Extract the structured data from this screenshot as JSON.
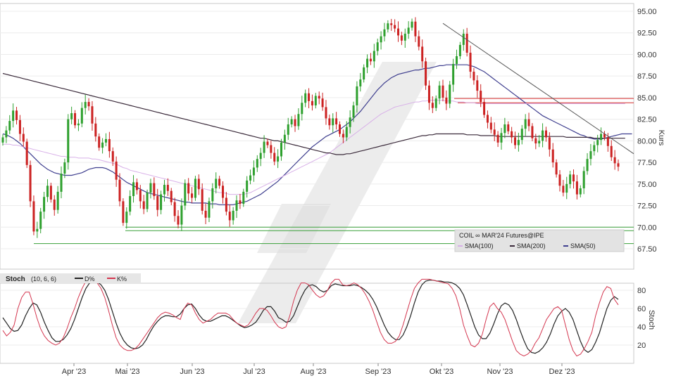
{
  "chart_data": [
    {
      "type": "candlestick",
      "instrument": "COIL ∞ MAR'24 Futures@IPE",
      "ylabel": "Kurs",
      "ylim": [
        66.0,
        96.5
      ],
      "y_ticks": [
        "95.00",
        "92.50",
        "90.00",
        "87.50",
        "85.00",
        "82.50",
        "80.00",
        "77.50",
        "75.00",
        "72.50",
        "70.00",
        "67.50"
      ],
      "x_ticks": [
        "Apr '23",
        "Mai '23",
        "Jun '23",
        "Jul '23",
        "Aug '23",
        "Sep '23",
        "Okt '23",
        "Nov '23",
        "Dez '23"
      ],
      "legend": [
        {
          "label": "SMA(100)",
          "color": "#d8b0e8"
        },
        {
          "label": "SMA(200)",
          "color": "#3a2a3a"
        },
        {
          "label": "SMA(50)",
          "color": "#3f3f8f"
        }
      ],
      "colors": {
        "up": "#2ea02e",
        "down": "#cc2222",
        "support": "#3aa03a",
        "resistance": "#d42a2a",
        "trend": "#555555"
      },
      "support_levels": [
        70.0,
        69.6,
        68.1
      ],
      "resistance_levels": [
        84.9,
        84.4
      ],
      "close": [
        80.4,
        81.2,
        82.3,
        83.5,
        82.4,
        80.8,
        79.9,
        77.2,
        73.0,
        69.5,
        69.8,
        71.8,
        73.5,
        74.8,
        73.2,
        72.0,
        74.1,
        76.2,
        77.5,
        82.5,
        83.2,
        81.8,
        82.0,
        83.8,
        84.5,
        84.0,
        82.0,
        80.5,
        79.2,
        79.8,
        80.2,
        78.8,
        77.6,
        75.5,
        73.0,
        70.5,
        71.8,
        73.6,
        75.2,
        74.3,
        73.0,
        72.1,
        74.0,
        75.1,
        73.6,
        72.0,
        73.8,
        74.9,
        74.2,
        72.9,
        71.3,
        70.3,
        72.5,
        75.1,
        73.9,
        73.4,
        75.6,
        74.4,
        71.9,
        71.1,
        73.0,
        74.5,
        75.6,
        74.8,
        73.4,
        71.8,
        70.8,
        71.9,
        73.1,
        72.7,
        74.1,
        75.4,
        76.0,
        76.9,
        77.9,
        78.6,
        79.9,
        79.5,
        78.6,
        77.6,
        78.2,
        79.8,
        80.7,
        81.9,
        82.5,
        81.7,
        83.1,
        84.4,
        85.5,
        84.6,
        84.1,
        85.2,
        84.9,
        83.9,
        82.6,
        81.8,
        82.6,
        81.9,
        80.8,
        80.4,
        81.6,
        82.7,
        84.1,
        86.3,
        87.1,
        88.5,
        89.5,
        89.2,
        90.4,
        91.4,
        92.1,
        92.9,
        93.6,
        93.4,
        93.0,
        92.2,
        91.6,
        92.4,
        93.1,
        93.8,
        92.1,
        90.9,
        89.2,
        86.4,
        84.4,
        83.8,
        84.9,
        86.4,
        85.0,
        84.3,
        86.5,
        88.9,
        89.8,
        91.1,
        92.4,
        90.2,
        88.0,
        87.0,
        85.8,
        84.5,
        83.0,
        82.1,
        81.3,
        80.7,
        79.8,
        80.9,
        81.9,
        81.1,
        80.4,
        79.5,
        80.1,
        81.4,
        82.5,
        81.7,
        80.3,
        79.7,
        80.0,
        81.2,
        80.4,
        79.0,
        77.5,
        76.1,
        74.8,
        74.0,
        75.0,
        76.1,
        75.3,
        73.8,
        74.5,
        76.5,
        77.9,
        78.8,
        79.5,
        80.1,
        80.8,
        80.4,
        79.4,
        78.1,
        77.4,
        77.0
      ],
      "series": [
        {
          "name": "SMA(50)",
          "values": [
            80.8,
            80.7,
            80.5,
            80.3,
            80.0,
            79.7,
            79.3,
            78.9,
            78.5,
            78.1,
            77.7,
            77.3,
            77.0,
            76.7,
            76.5,
            76.3,
            76.2,
            76.1,
            76.0,
            76.0,
            76.0,
            76.1,
            76.2,
            76.3,
            76.5,
            76.7,
            76.8,
            76.9,
            76.9,
            76.9,
            76.8,
            76.6,
            76.4,
            76.1,
            75.8,
            75.5,
            75.2,
            75.0,
            74.8,
            74.6,
            74.4,
            74.2,
            74.0,
            73.9,
            73.8,
            73.7,
            73.6,
            73.5,
            73.4,
            73.3,
            73.2,
            73.1,
            73.0,
            72.9,
            72.9,
            72.8,
            72.8,
            72.8,
            72.8,
            72.8,
            72.7,
            72.7,
            72.7,
            72.6,
            72.6,
            72.6,
            72.6,
            72.6,
            72.7,
            72.8,
            72.9,
            73.0,
            73.2,
            73.4,
            73.6,
            73.8,
            74.1,
            74.4,
            74.7,
            75.0,
            75.3,
            75.7,
            76.1,
            76.5,
            76.9,
            77.3,
            77.7,
            78.1,
            78.5,
            78.9,
            79.3,
            79.6,
            79.9,
            80.2,
            80.5,
            80.7,
            80.9,
            81.1,
            81.3,
            81.6,
            81.9,
            82.2,
            82.6,
            83.0,
            83.4,
            83.9,
            84.4,
            84.9,
            85.4,
            85.9,
            86.3,
            86.7,
            87.0,
            87.3,
            87.5,
            87.7,
            87.8,
            87.9,
            88.0,
            88.1,
            88.2,
            88.2,
            88.3,
            88.4,
            88.4,
            88.5,
            88.6,
            88.7,
            88.7,
            88.8,
            88.8,
            88.8,
            88.8,
            88.8,
            88.8,
            88.8,
            88.7,
            88.6,
            88.4,
            88.2,
            88.0,
            87.7,
            87.4,
            87.1,
            86.8,
            86.5,
            86.2,
            85.9,
            85.6,
            85.3,
            85.0,
            84.7,
            84.4,
            84.1,
            83.8,
            83.5,
            83.2,
            82.9,
            82.7,
            82.5,
            82.3,
            82.1,
            81.9,
            81.7,
            81.5,
            81.3,
            81.1,
            80.9,
            80.7,
            80.6,
            80.4,
            80.3,
            80.2,
            80.2,
            80.2,
            80.3,
            80.4,
            80.5,
            80.6,
            80.7,
            80.8,
            80.8,
            80.8,
            80.8
          ]
        },
        {
          "name": "SMA(100)",
          "values": [
            79.6,
            79.6,
            79.6,
            79.5,
            79.5,
            79.4,
            79.3,
            79.2,
            79.1,
            79.0,
            78.9,
            78.8,
            78.7,
            78.6,
            78.5,
            78.4,
            78.3,
            78.2,
            78.2,
            78.1,
            78.1,
            78.1,
            78.0,
            78.0,
            78.0,
            78.0,
            77.9,
            77.9,
            77.8,
            77.7,
            77.6,
            77.5,
            77.4,
            77.3,
            77.1,
            76.9,
            76.8,
            76.6,
            76.5,
            76.4,
            76.3,
            76.2,
            76.1,
            76.0,
            75.9,
            75.8,
            75.7,
            75.6,
            75.5,
            75.4,
            75.3,
            75.2,
            75.1,
            75.0,
            74.9,
            74.8,
            74.7,
            74.6,
            74.5,
            74.4,
            74.3,
            74.2,
            74.1,
            74.0,
            74.0,
            73.9,
            73.8,
            73.8,
            73.8,
            73.8,
            73.8,
            73.9,
            74.0,
            74.2,
            74.4,
            74.6,
            74.8,
            75.0,
            75.2,
            75.4,
            75.6,
            75.8,
            76.0,
            76.2,
            76.4,
            76.6,
            76.8,
            77.0,
            77.2,
            77.4,
            77.6,
            77.8,
            78.0,
            78.2,
            78.4,
            78.6,
            78.9,
            79.2,
            79.5,
            79.8,
            80.1,
            80.4,
            80.7,
            81.0,
            81.3,
            81.6,
            81.9,
            82.2,
            82.5,
            82.8,
            83.1,
            83.3,
            83.5,
            83.7,
            83.9,
            84.0,
            84.1,
            84.2,
            84.3,
            84.4,
            84.5,
            84.5,
            84.6,
            84.6,
            84.7,
            84.7,
            84.7,
            84.7,
            84.7,
            84.6,
            84.6,
            84.6,
            84.5,
            84.5,
            84.5,
            84.4,
            84.4,
            84.4,
            84.3,
            84.3,
            84.3,
            84.3,
            84.3,
            84.3,
            84.3,
            84.3,
            84.3,
            84.3,
            84.3,
            84.3,
            84.3,
            84.3,
            84.3,
            84.3,
            84.3,
            84.3,
            84.3,
            84.3,
            84.3,
            84.3,
            84.3,
            84.3,
            84.3,
            84.3,
            84.3,
            84.3,
            84.3,
            84.3,
            84.3,
            84.3,
            84.3,
            84.3,
            84.3,
            84.3,
            84.3,
            84.3,
            84.3,
            84.3,
            84.3,
            84.3,
            84.3,
            84.3
          ]
        },
        {
          "name": "SMA(200)",
          "values": [
            87.8,
            87.7,
            87.6,
            87.5,
            87.4,
            87.3,
            87.2,
            87.1,
            87.0,
            86.9,
            86.8,
            86.7,
            86.6,
            86.5,
            86.4,
            86.3,
            86.2,
            86.1,
            86.0,
            85.9,
            85.8,
            85.7,
            85.6,
            85.5,
            85.4,
            85.3,
            85.2,
            85.1,
            85.0,
            84.9,
            84.8,
            84.7,
            84.6,
            84.5,
            84.4,
            84.3,
            84.2,
            84.1,
            84.0,
            83.9,
            83.8,
            83.7,
            83.6,
            83.5,
            83.4,
            83.3,
            83.2,
            83.1,
            83.0,
            82.9,
            82.8,
            82.7,
            82.6,
            82.5,
            82.4,
            82.3,
            82.2,
            82.1,
            82.0,
            81.9,
            81.8,
            81.7,
            81.6,
            81.5,
            81.4,
            81.3,
            81.2,
            81.1,
            81.0,
            80.9,
            80.8,
            80.7,
            80.6,
            80.5,
            80.4,
            80.3,
            80.3,
            80.2,
            80.1,
            80.0,
            80.0,
            79.9,
            79.8,
            79.7,
            79.6,
            79.5,
            79.4,
            79.3,
            79.2,
            79.1,
            79.0,
            78.9,
            78.8,
            78.7,
            78.6,
            78.6,
            78.5,
            78.4,
            78.4,
            78.4,
            78.5,
            78.5,
            78.6,
            78.7,
            78.8,
            78.9,
            79.0,
            79.1,
            79.2,
            79.3,
            79.4,
            79.5,
            79.6,
            79.7,
            79.8,
            79.9,
            80.0,
            80.1,
            80.2,
            80.3,
            80.4,
            80.5,
            80.6,
            80.6,
            80.7,
            80.7,
            80.8,
            80.8,
            80.8,
            80.8,
            80.8,
            80.8,
            80.8,
            80.8,
            80.8,
            80.7,
            80.7,
            80.7,
            80.7,
            80.6,
            80.6,
            80.6,
            80.6,
            80.6,
            80.5,
            80.5,
            80.5,
            80.5,
            80.5,
            80.5,
            80.5,
            80.5,
            80.5,
            80.5,
            80.5,
            80.5,
            80.5,
            80.5,
            80.5,
            80.5,
            80.5,
            80.5,
            80.5,
            80.5,
            80.4,
            80.4,
            80.4,
            80.4,
            80.4,
            80.4,
            80.4,
            80.4,
            80.3,
            80.3,
            80.3,
            80.3,
            80.3,
            80.3,
            80.3,
            80.3,
            80.3,
            80.3
          ]
        }
      ],
      "trendline": [
        [
          128,
          93.6
        ],
        [
          185,
          78.5
        ]
      ]
    },
    {
      "type": "line",
      "indicator": "Stoch",
      "params": "(10, 6, 6)",
      "ylabel": "Stoch",
      "ylim": [
        0,
        100
      ],
      "y_ticks": [
        "80",
        "60",
        "40",
        "20"
      ],
      "legend": [
        {
          "label": "D%",
          "color": "#222222"
        },
        {
          "label": "K%",
          "color": "#d4364f"
        }
      ],
      "series": [
        {
          "name": "D%",
          "values": [
            50,
            44,
            38,
            35,
            36,
            42,
            52,
            60,
            66,
            64,
            56,
            45,
            36,
            28,
            24,
            24,
            26,
            31,
            38,
            48,
            60,
            72,
            82,
            88,
            90,
            89,
            86,
            80,
            70,
            57,
            44,
            33,
            25,
            20,
            17,
            16,
            17,
            20,
            26,
            34,
            41,
            46,
            50,
            52,
            52,
            51,
            51,
            54,
            60,
            64,
            65,
            60,
            53,
            48,
            46,
            46,
            48,
            50,
            52,
            52,
            50,
            47,
            44,
            41,
            39,
            40,
            42,
            45,
            51,
            58,
            62,
            62,
            57,
            50,
            48,
            45,
            46,
            52,
            62,
            72,
            80,
            85,
            86,
            84,
            80,
            78,
            80,
            85,
            87,
            86,
            85,
            85,
            85,
            86,
            85,
            83,
            80,
            76,
            70,
            62,
            52,
            42,
            34,
            29,
            26,
            26,
            31,
            40,
            52,
            66,
            78,
            86,
            90,
            91,
            91,
            90,
            90,
            89,
            89,
            88,
            86,
            82,
            75,
            64,
            52,
            40,
            31,
            27,
            27,
            33,
            43,
            54,
            63,
            66,
            64,
            58,
            48,
            36,
            25,
            16,
            12,
            11,
            13,
            17,
            23,
            32,
            43,
            52,
            57,
            60,
            56,
            48,
            36,
            24,
            15,
            12,
            15,
            23,
            33,
            47,
            60,
            69,
            73,
            70
          ]
        },
        {
          "name": "K%",
          "values": [
            36,
            30,
            34,
            42,
            60,
            72,
            78,
            78,
            65,
            50,
            38,
            30,
            25,
            22,
            20,
            22,
            28,
            38,
            50,
            60,
            72,
            82,
            90,
            92,
            91,
            88,
            82,
            72,
            58,
            42,
            28,
            20,
            16,
            14,
            14,
            16,
            20,
            26,
            32,
            38,
            44,
            50,
            54,
            56,
            55,
            53,
            50,
            48,
            60,
            66,
            64,
            55,
            48,
            44,
            46,
            48,
            52,
            55,
            55,
            55,
            53,
            48,
            44,
            42,
            40,
            42,
            48,
            55,
            60,
            60,
            58,
            52,
            45,
            40,
            38,
            40,
            52,
            68,
            80,
            88,
            88,
            86,
            80,
            75,
            72,
            74,
            80,
            88,
            92,
            92,
            86,
            85,
            86,
            88,
            86,
            82,
            76,
            68,
            58,
            46,
            34,
            26,
            22,
            22,
            24,
            30,
            42,
            56,
            70,
            82,
            88,
            92,
            92,
            92,
            91,
            90,
            89,
            88,
            87,
            82,
            74,
            60,
            42,
            30,
            20,
            18,
            22,
            32,
            48,
            62,
            66,
            60,
            56,
            48,
            36,
            24,
            14,
            10,
            8,
            10,
            14,
            22,
            28,
            38,
            48,
            54,
            60,
            62,
            58,
            42,
            26,
            14,
            8,
            10,
            16,
            24,
            34,
            52,
            66,
            78,
            84,
            82,
            70,
            64
          ]
        }
      ]
    }
  ]
}
